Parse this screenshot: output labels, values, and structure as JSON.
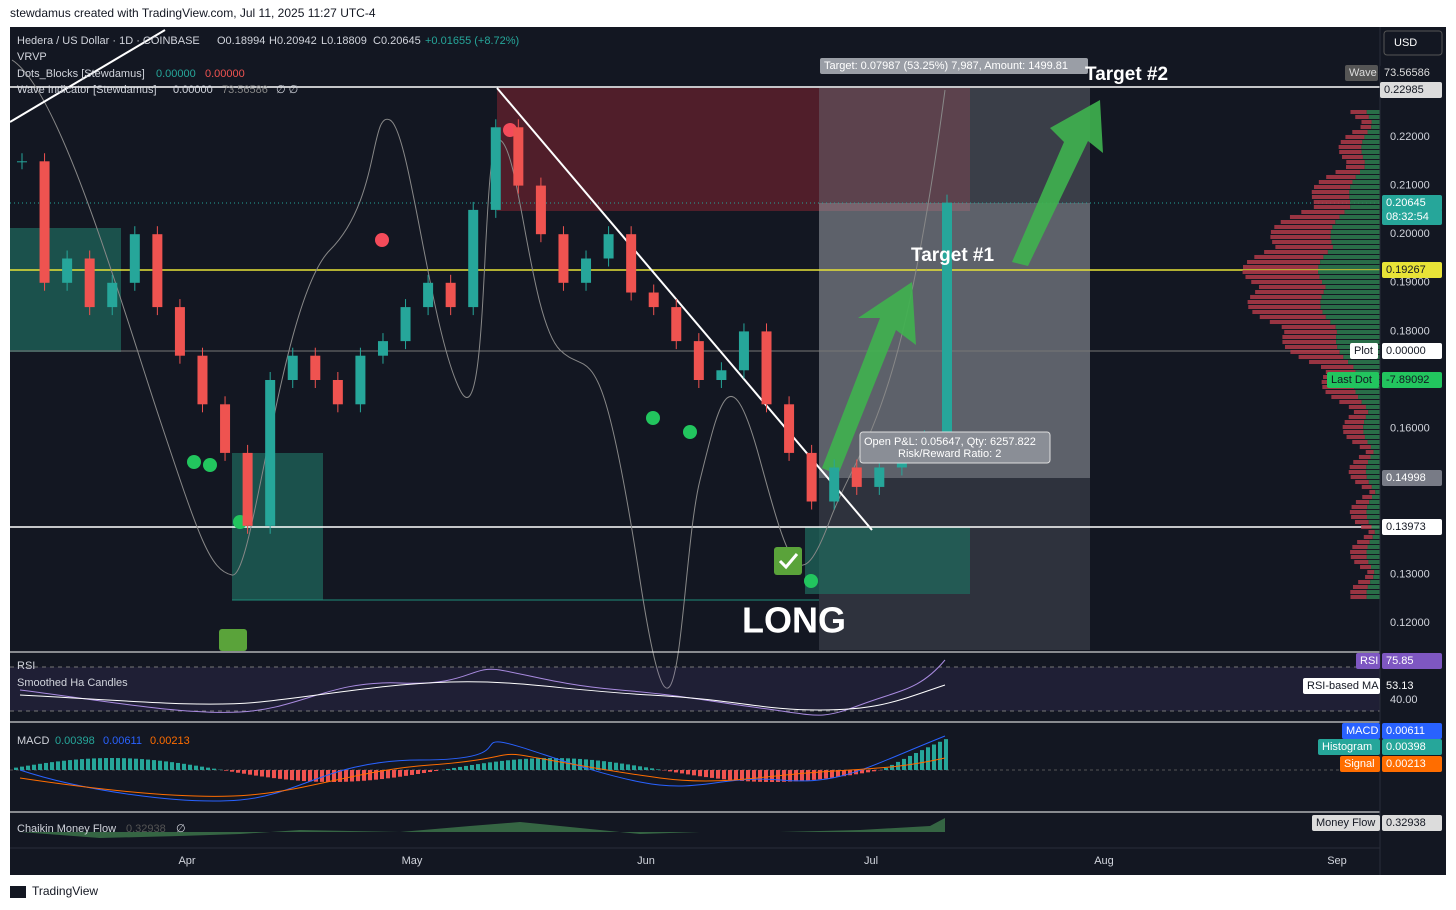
{
  "header": {
    "author_line": "stewdamus created with TradingView.com, Jul 11, 2025 11:27 UTC-4"
  },
  "legend": {
    "symbol": "Hedera / US Dollar · 1D · COINBASE",
    "open": "O0.18994",
    "high": "H0.20942",
    "low": "L0.18809",
    "close": "C0.20645",
    "change": "+0.01655 (+8.72%)",
    "indicators": [
      {
        "name": "VRVP"
      },
      {
        "name": "Dots_Blocks [Stewdamus]",
        "values": [
          "0.00000",
          "0.00000"
        ]
      },
      {
        "name": "Wave Indicator [Stewdamus]",
        "values": [
          "0.00000",
          "73.56586",
          "∅ ∅"
        ]
      }
    ]
  },
  "currency_button": "USD",
  "price_axis": [
    "0.22000",
    "0.21000",
    "0.20000",
    "0.19000",
    "0.18000",
    "0.17000",
    "0.16000",
    "0.15000",
    "0.14000",
    "0.13000",
    "0.12000"
  ],
  "price_tags": {
    "wave_label": "Wave",
    "wave_value": "73.56586",
    "top_line": "0.22985",
    "last_price": "0.20645",
    "countdown": "08:32:54",
    "yellow_line": "0.19267",
    "plot_label": "Plot",
    "plot_value": "0.00000",
    "last_dot_label": "Last Dot",
    "last_dot_value": "-7.89092",
    "entry": "0.14998",
    "bottom_line": "0.13973"
  },
  "time_axis": [
    "Apr",
    "May",
    "Jun",
    "Jul",
    "Aug",
    "Sep"
  ],
  "annotations": {
    "target_box": "Target: 0.07987 (53.25%) 7,987, Amount: 1499.81",
    "target_2": "Target #2",
    "target_1": "Target #1",
    "position_line_1": "Open P&L: 0.05647, Qty: 6257.822",
    "position_line_2": "Risk/Reward Ratio: 2",
    "long": "LONG"
  },
  "candles": {
    "closes": [
      0.215,
      0.19,
      0.195,
      0.185,
      0.19,
      0.2,
      0.185,
      0.175,
      0.165,
      0.155,
      0.14,
      0.17,
      0.175,
      0.17,
      0.165,
      0.175,
      0.178,
      0.185,
      0.19,
      0.185,
      0.205,
      0.222,
      0.21,
      0.2,
      0.19,
      0.195,
      0.2,
      0.188,
      0.185,
      0.178,
      0.17,
      0.172,
      0.18,
      0.165,
      0.155,
      0.145,
      0.152,
      0.148,
      0.152,
      0.155,
      0.158,
      0.2065
    ]
  },
  "panes": {
    "rsi": {
      "title": "RSI",
      "overlay": "Smoothed Ha Candles",
      "rsi_label": "RSI",
      "rsi_value": "75.85",
      "ma_label": "RSI-based MA",
      "ma_value": "53.13",
      "level": "40.00"
    },
    "macd": {
      "title": "MACD",
      "values": [
        "0.00398",
        "0.00611",
        "0.00213"
      ],
      "macd_label": "MACD",
      "macd_value": "0.00611",
      "hist_label": "Histogram",
      "hist_value": "0.00398",
      "signal_label": "Signal",
      "signal_value": "0.00213"
    },
    "chaikin": {
      "title": "Chaikin Money Flow",
      "value": "0.32938",
      "extra": "∅",
      "tag_label": "Money Flow",
      "tag_value": "0.32938"
    }
  },
  "footer": "TradingView"
}
